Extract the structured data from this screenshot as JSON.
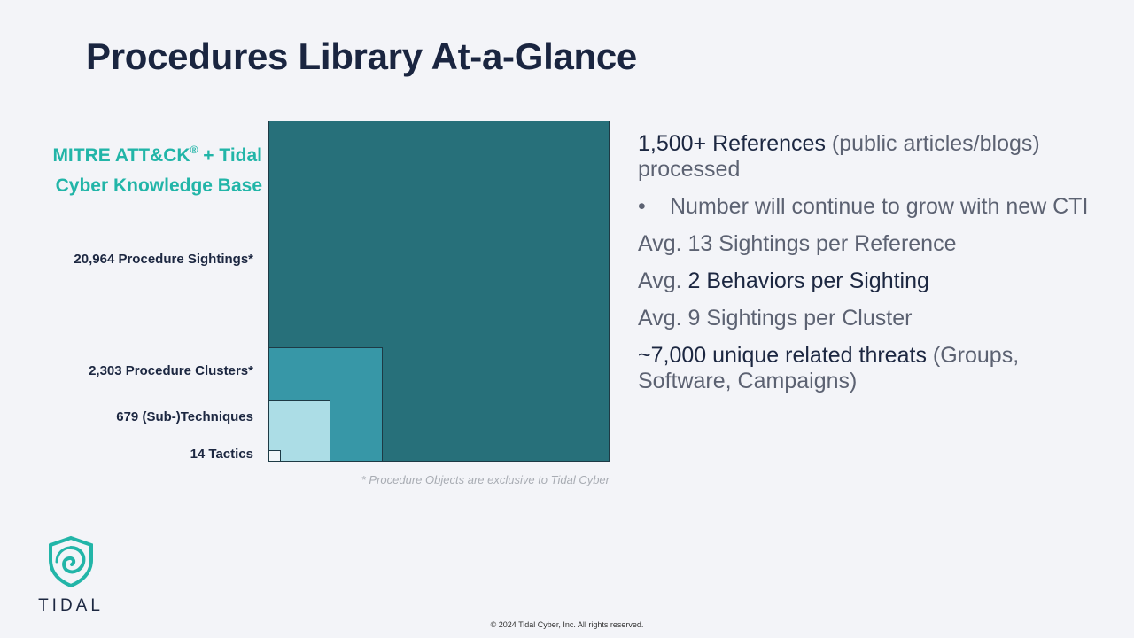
{
  "slide": {
    "title": "Procedures Library At-a-Glance",
    "knowledge_base_label": "MITRE ATT&CK",
    "knowledge_base_sup": "®",
    "knowledge_base_label_2": " + Tidal Cyber Knowledge Base",
    "levels": [
      {
        "label": "20,964 Procedure Sightings*",
        "value": 20964
      },
      {
        "label": "2,303 Procedure Clusters*",
        "value": 2303
      },
      {
        "label": "679 (Sub-)Techniques",
        "value": 679
      },
      {
        "label": "14 Tactics",
        "value": 14
      }
    ],
    "footnote": "* Procedure Objects are exclusive to Tidal Cyber",
    "stats": {
      "ref_highlight": "1,500+ References",
      "ref_rest": " (public articles/blogs) processed",
      "bullet_marker": "•",
      "bullet_text": "Number will continue to grow with new CTI",
      "sightings_per_ref": "Avg. 13 Sightings per Reference",
      "behaviors_prefix": "Avg. ",
      "behaviors_highlight": "2 Behaviors per Sighting",
      "sightings_per_cluster": "Avg. 9 Sightings per Cluster",
      "threats_highlight": "~7,000 unique related threats",
      "threats_rest": " (Groups, Software, Campaigns)"
    },
    "logo_text": "TIDAL",
    "logo_icon": "tidal-shield-icon",
    "copyright": "© 2024 Tidal Cyber, Inc. All rights reserved."
  },
  "colors": {
    "title": "#1a2540",
    "accent": "#22b5a8",
    "box_sightings": "#27707a",
    "box_clusters": "#3797a7",
    "box_techniques": "#acdde6",
    "box_tactics": "#f1f6f8"
  }
}
